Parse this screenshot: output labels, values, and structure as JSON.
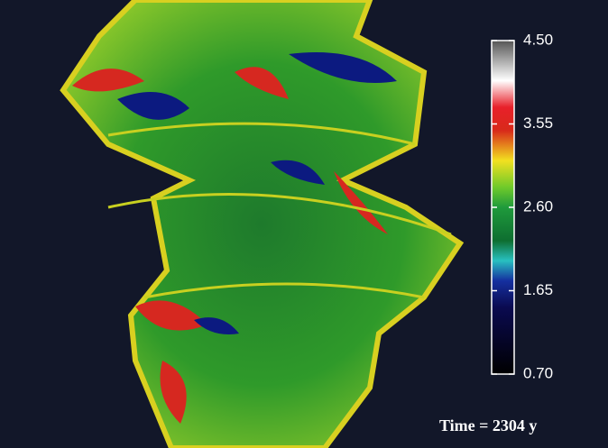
{
  "colorbar": {
    "lim": [
      0.7,
      4.5
    ],
    "ticks": [
      {
        "value": 4.5,
        "label": "4.50"
      },
      {
        "value": 3.55,
        "label": "3.55"
      },
      {
        "value": 2.6,
        "label": "2.60"
      },
      {
        "value": 1.65,
        "label": "1.65"
      },
      {
        "value": 0.7,
        "label": "0.70"
      }
    ]
  },
  "annotation": "Time = 2304 y"
}
